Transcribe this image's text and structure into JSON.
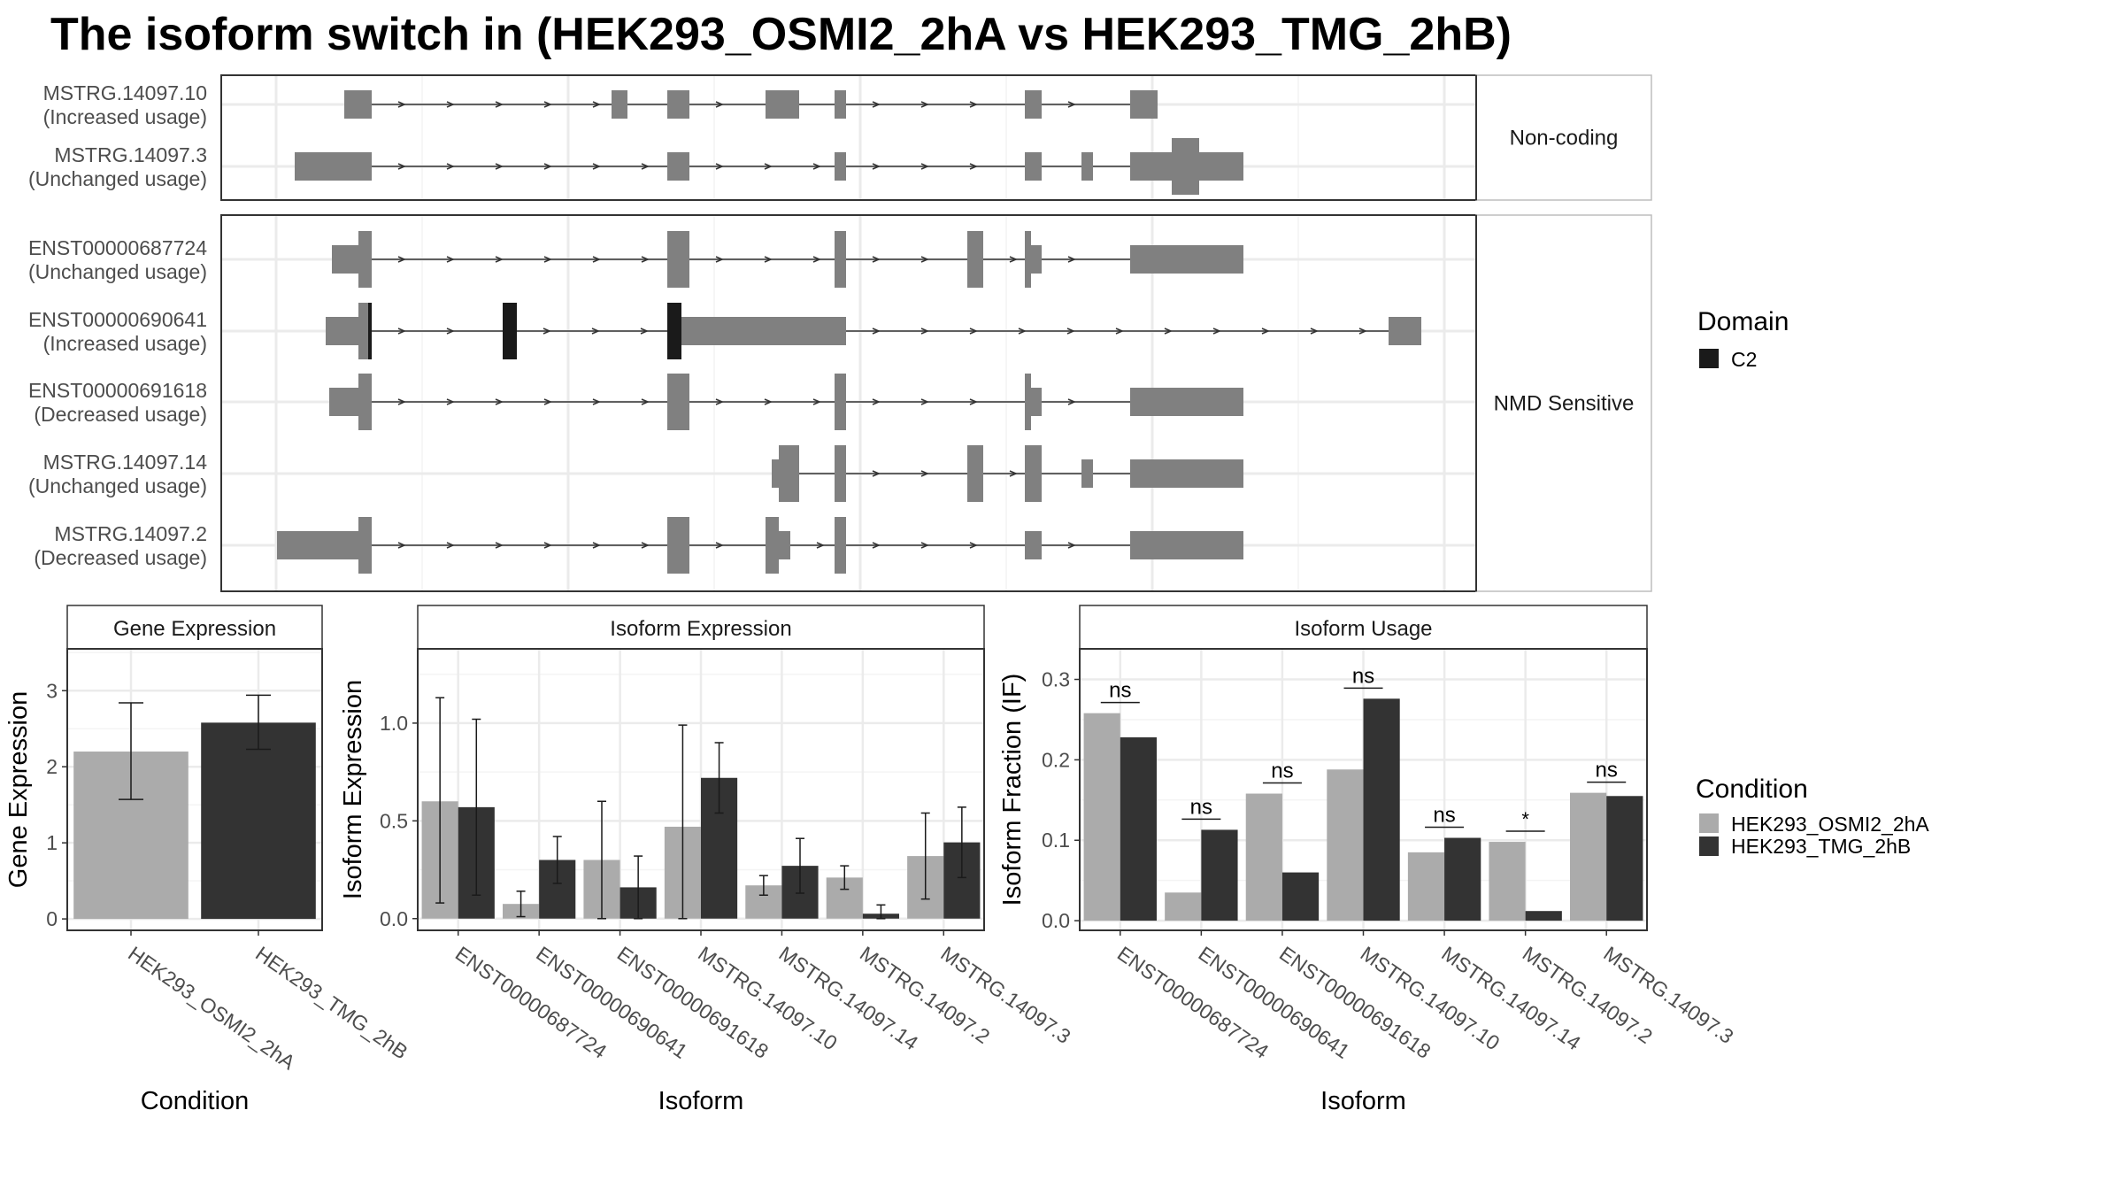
{
  "title": "The isoform switch in  (HEK293_OSMI2_2hA vs HEK293_TMG_2hB)",
  "colors": {
    "condition_a": "#ABABAB",
    "condition_b": "#333333",
    "exon": "#808080",
    "domain": "#1A1A1A",
    "grid": "#EBEBEB",
    "panel_border": "#333333",
    "strip_border": "#BDBDBD"
  },
  "transcript_panel": {
    "groups": [
      {
        "label": "Non-coding",
        "transcripts": [
          {
            "id": "MSTRG.14097.10",
            "usage": "(Increased usage)"
          },
          {
            "id": "MSTRG.14097.3",
            "usage": "(Unchanged usage)"
          }
        ]
      },
      {
        "label": "NMD Sensitive",
        "transcripts": [
          {
            "id": "ENST00000687724",
            "usage": "(Unchanged usage)"
          },
          {
            "id": "ENST00000690641",
            "usage": "(Increased usage)"
          },
          {
            "id": "ENST00000691618",
            "usage": "(Decreased usage)"
          },
          {
            "id": "MSTRG.14097.14",
            "usage": "(Unchanged usage)"
          },
          {
            "id": "MSTRG.14097.2",
            "usage": "(Decreased usage)"
          }
        ]
      }
    ]
  },
  "legends": {
    "domain": {
      "title": "Domain",
      "items": [
        {
          "label": "C2",
          "color": "#1A1A1A"
        }
      ]
    },
    "condition": {
      "title": "Condition",
      "items": [
        {
          "label": "HEK293_OSMI2_2hA",
          "color": "#ABABAB"
        },
        {
          "label": "HEK293_TMG_2hB",
          "color": "#333333"
        }
      ]
    }
  },
  "chart_data": [
    {
      "type": "bar",
      "title": "Gene Expression",
      "xlabel": "Condition",
      "ylabel": "Gene Expression",
      "categories": [
        "HEK293_OSMI2_2hA",
        "HEK293_TMG_2hB"
      ],
      "values": [
        2.2,
        2.58
      ],
      "error_low": [
        1.57,
        2.23
      ],
      "error_high": [
        2.84,
        2.94
      ],
      "ylim": [
        -0.15,
        3.55
      ],
      "yticks": [
        "0",
        "1",
        "2",
        "3"
      ],
      "grid": true
    },
    {
      "type": "bar",
      "title": "Isoform Expression",
      "xlabel": "Isoform",
      "ylabel": "Isoform Expression",
      "categories": [
        "ENST00000687724",
        "ENST00000690641",
        "ENST00000691618",
        "MSTRG.14097.10",
        "MSTRG.14097.14",
        "MSTRG.14097.2",
        "MSTRG.14097.3"
      ],
      "series": [
        {
          "name": "HEK293_OSMI2_2hA",
          "values": [
            0.6,
            0.075,
            0.3,
            0.47,
            0.17,
            0.21,
            0.32
          ],
          "error_low": [
            0.08,
            0.01,
            0.0,
            0.0,
            0.12,
            0.15,
            0.1
          ],
          "error_high": [
            1.13,
            0.14,
            0.6,
            0.99,
            0.22,
            0.27,
            0.54
          ]
        },
        {
          "name": "HEK293_TMG_2hB",
          "values": [
            0.57,
            0.3,
            0.16,
            0.72,
            0.27,
            0.025,
            0.39
          ],
          "error_low": [
            0.12,
            0.18,
            0.0,
            0.54,
            0.13,
            0.0,
            0.21
          ],
          "error_high": [
            1.02,
            0.42,
            0.32,
            0.9,
            0.41,
            0.07,
            0.57
          ]
        }
      ],
      "ylim": [
        -0.06,
        1.38
      ],
      "yticks": [
        "0.0",
        "0.5",
        "1.0"
      ],
      "grid": true
    },
    {
      "type": "bar",
      "title": "Isoform Usage",
      "xlabel": "Isoform",
      "ylabel": "Isoform Fraction (IF)",
      "categories": [
        "ENST00000687724",
        "ENST00000690641",
        "ENST00000691618",
        "MSTRG.14097.10",
        "MSTRG.14097.14",
        "MSTRG.14097.2",
        "MSTRG.14097.3"
      ],
      "series": [
        {
          "name": "HEK293_OSMI2_2hA",
          "values": [
            0.258,
            0.035,
            0.158,
            0.188,
            0.085,
            0.098,
            0.159
          ]
        },
        {
          "name": "HEK293_TMG_2hB",
          "values": [
            0.228,
            0.113,
            0.06,
            0.276,
            0.103,
            0.012,
            0.155
          ]
        }
      ],
      "significance": [
        "ns",
        "ns",
        "ns",
        "ns",
        "ns",
        "*",
        "ns"
      ],
      "ylim": [
        -0.012,
        0.338
      ],
      "yticks": [
        "0.0",
        "0.1",
        "0.2",
        "0.3"
      ],
      "grid": true
    }
  ]
}
